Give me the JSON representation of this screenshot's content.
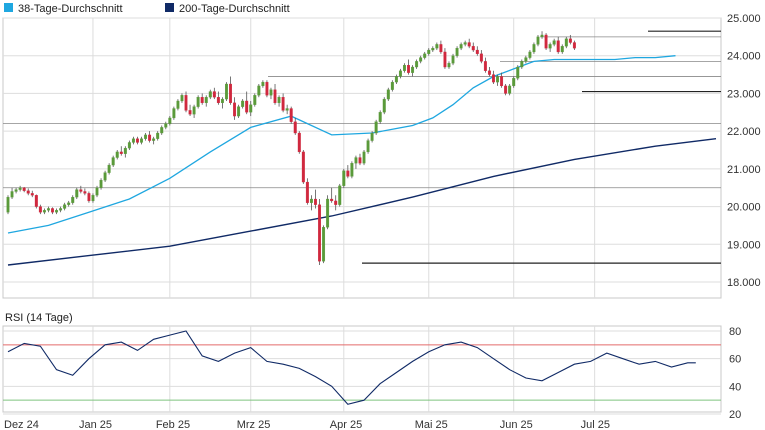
{
  "legend": {
    "items": [
      {
        "label": "38-Tage-Durchschnitt",
        "color": "#1fa7e0"
      },
      {
        "label": "200-Tage-Durchschnitt",
        "color": "#102a66"
      }
    ]
  },
  "colors": {
    "up": "#5a9a3a",
    "down": "#d0283e",
    "ma38": "#1fa7e0",
    "ma200": "#102a66",
    "rsi": "#102a66",
    "rsi_upper": "#e36b6b",
    "rsi_lower": "#7fc47f",
    "level_line": "#333333",
    "grid": "#dddddd"
  },
  "chart_data": [
    {
      "type": "candlestick",
      "title": "",
      "ylim": [
        18000,
        25000
      ],
      "y_ticks": [
        "18.000",
        "19.000",
        "20.000",
        "21.000",
        "22.000",
        "23.000",
        "24.000",
        "25.000"
      ],
      "x_ticks": [
        "Dez 24",
        "Jan 25",
        "Feb 25",
        "Mrz 25",
        "Apr 25",
        "Mai 25",
        "Jun 25",
        "Jul 25"
      ],
      "x_tick_index": [
        0,
        21,
        40,
        60,
        83,
        104,
        125,
        145
      ],
      "grid": true,
      "legend_placement": "top-left",
      "candles": [
        [
          19850,
          20300,
          19800,
          20250
        ],
        [
          20250,
          20500,
          20200,
          20400
        ],
        [
          20400,
          20500,
          20350,
          20450
        ],
        [
          20450,
          20550,
          20400,
          20500
        ],
        [
          20500,
          20520,
          20380,
          20420
        ],
        [
          20420,
          20480,
          20300,
          20350
        ],
        [
          20350,
          20420,
          20250,
          20300
        ],
        [
          20300,
          20320,
          19950,
          20000
        ],
        [
          20000,
          20050,
          19800,
          19850
        ],
        [
          19850,
          19950,
          19800,
          19900
        ],
        [
          19900,
          20000,
          19850,
          19950
        ],
        [
          19950,
          19980,
          19800,
          19850
        ],
        [
          19850,
          19950,
          19800,
          19900
        ],
        [
          19900,
          20000,
          19850,
          19950
        ],
        [
          19950,
          20100,
          19900,
          20050
        ],
        [
          20050,
          20150,
          20000,
          20100
        ],
        [
          20100,
          20300,
          20050,
          20250
        ],
        [
          20250,
          20500,
          20200,
          20450
        ],
        [
          20450,
          20550,
          20350,
          20400
        ],
        [
          20400,
          20480,
          20300,
          20350
        ],
        [
          20350,
          20400,
          20100,
          20150
        ],
        [
          20150,
          20350,
          20100,
          20300
        ],
        [
          20300,
          20550,
          20250,
          20500
        ],
        [
          20500,
          20750,
          20450,
          20700
        ],
        [
          20700,
          20950,
          20650,
          20900
        ],
        [
          20900,
          21150,
          20850,
          21100
        ],
        [
          21100,
          21350,
          21050,
          21300
        ],
        [
          21300,
          21500,
          21250,
          21450
        ],
        [
          21450,
          21600,
          21350,
          21400
        ],
        [
          21400,
          21600,
          21300,
          21550
        ],
        [
          21550,
          21750,
          21500,
          21700
        ],
        [
          21700,
          21850,
          21650,
          21800
        ],
        [
          21800,
          21850,
          21650,
          21700
        ],
        [
          21700,
          21850,
          21650,
          21800
        ],
        [
          21800,
          21950,
          21750,
          21900
        ],
        [
          21900,
          22000,
          21700,
          21750
        ],
        [
          21750,
          21850,
          21650,
          21800
        ],
        [
          21800,
          22000,
          21750,
          21950
        ],
        [
          21950,
          22150,
          21900,
          22100
        ],
        [
          22100,
          22250,
          22050,
          22200
        ],
        [
          22200,
          22400,
          22150,
          22350
        ],
        [
          22350,
          22650,
          22300,
          22600
        ],
        [
          22600,
          22850,
          22550,
          22800
        ],
        [
          22800,
          23000,
          22750,
          22950
        ],
        [
          22950,
          23050,
          22500,
          22550
        ],
        [
          22550,
          22700,
          22400,
          22450
        ],
        [
          22450,
          22700,
          22350,
          22650
        ],
        [
          22650,
          22950,
          22600,
          22900
        ],
        [
          22900,
          23000,
          22700,
          22750
        ],
        [
          22750,
          22950,
          22650,
          22900
        ],
        [
          22900,
          23100,
          22850,
          23050
        ],
        [
          23050,
          23150,
          22850,
          22900
        ],
        [
          22900,
          23050,
          22700,
          22750
        ],
        [
          22750,
          22900,
          22600,
          22850
        ],
        [
          22850,
          23300,
          22800,
          23250
        ],
        [
          23250,
          23450,
          22700,
          22750
        ],
        [
          22750,
          22900,
          22300,
          22400
        ],
        [
          22400,
          22700,
          22350,
          22650
        ],
        [
          22650,
          22850,
          22600,
          22800
        ],
        [
          22800,
          23050,
          22450,
          22500
        ],
        [
          22500,
          22800,
          22400,
          22700
        ],
        [
          22700,
          23000,
          22650,
          22950
        ],
        [
          22950,
          23250,
          22900,
          23200
        ],
        [
          23200,
          23350,
          23150,
          23300
        ],
        [
          23300,
          23350,
          22900,
          22950
        ],
        [
          22950,
          23150,
          22850,
          23100
        ],
        [
          23100,
          23250,
          22700,
          22750
        ],
        [
          22750,
          22950,
          22650,
          22900
        ],
        [
          22900,
          23000,
          22500,
          22550
        ],
        [
          22550,
          22700,
          22450,
          22600
        ],
        [
          22600,
          22650,
          22200,
          22250
        ],
        [
          22250,
          22350,
          21900,
          21950
        ],
        [
          21950,
          22000,
          21400,
          21450
        ],
        [
          21450,
          21500,
          20600,
          20650
        ],
        [
          20650,
          20750,
          20050,
          20100
        ],
        [
          20100,
          20300,
          19900,
          20200
        ],
        [
          20200,
          20450,
          19950,
          20050
        ],
        [
          20050,
          20200,
          18450,
          18550
        ],
        [
          18550,
          19500,
          18500,
          19450
        ],
        [
          19450,
          20300,
          19400,
          20200
        ],
        [
          20200,
          20500,
          20100,
          20150
        ],
        [
          20150,
          20300,
          19900,
          20050
        ],
        [
          20050,
          20600,
          20000,
          20550
        ],
        [
          20550,
          21000,
          20500,
          20950
        ],
        [
          20950,
          21100,
          20750,
          20800
        ],
        [
          20800,
          21200,
          20750,
          21150
        ],
        [
          21150,
          21350,
          21000,
          21300
        ],
        [
          21300,
          21400,
          21100,
          21150
        ],
        [
          21150,
          21500,
          21100,
          21450
        ],
        [
          21450,
          21800,
          21400,
          21750
        ],
        [
          21750,
          22000,
          21700,
          21950
        ],
        [
          21950,
          22300,
          21900,
          22250
        ],
        [
          22250,
          22550,
          22200,
          22500
        ],
        [
          22500,
          22900,
          22450,
          22850
        ],
        [
          22850,
          23150,
          22800,
          23100
        ],
        [
          23100,
          23350,
          23050,
          23300
        ],
        [
          23300,
          23500,
          23250,
          23450
        ],
        [
          23450,
          23650,
          23400,
          23600
        ],
        [
          23600,
          23800,
          23550,
          23750
        ],
        [
          23750,
          23900,
          23500,
          23550
        ],
        [
          23550,
          23750,
          23450,
          23700
        ],
        [
          23700,
          23900,
          23650,
          23850
        ],
        [
          23850,
          24000,
          23800,
          23950
        ],
        [
          23950,
          24100,
          23900,
          24050
        ],
        [
          24050,
          24200,
          24000,
          24150
        ],
        [
          24150,
          24250,
          24100,
          24200
        ],
        [
          24200,
          24350,
          24150,
          24300
        ],
        [
          24300,
          24400,
          24050,
          24100
        ],
        [
          24100,
          24200,
          23650,
          23700
        ],
        [
          23700,
          23850,
          23650,
          23800
        ],
        [
          23800,
          24050,
          23750,
          24000
        ],
        [
          24000,
          24250,
          23950,
          24200
        ],
        [
          24200,
          24350,
          24150,
          24300
        ],
        [
          24300,
          24400,
          24250,
          24350
        ],
        [
          24350,
          24450,
          24200,
          24250
        ],
        [
          24250,
          24350,
          24100,
          24150
        ],
        [
          24150,
          24250,
          24000,
          24050
        ],
        [
          24050,
          24150,
          23800,
          23850
        ],
        [
          23850,
          23950,
          23550,
          23600
        ],
        [
          23600,
          23700,
          23450,
          23500
        ],
        [
          23500,
          23600,
          23250,
          23300
        ],
        [
          23300,
          23500,
          23200,
          23450
        ],
        [
          23450,
          23550,
          23150,
          23200
        ],
        [
          23200,
          23250,
          22950,
          23000
        ],
        [
          23000,
          23250,
          22950,
          23200
        ],
        [
          23200,
          23450,
          23150,
          23400
        ],
        [
          23400,
          23750,
          23350,
          23700
        ],
        [
          23700,
          23900,
          23650,
          23850
        ],
        [
          23850,
          24000,
          23800,
          23950
        ],
        [
          23950,
          24150,
          23900,
          24100
        ],
        [
          24100,
          24350,
          24050,
          24300
        ],
        [
          24300,
          24550,
          24250,
          24500
        ],
        [
          24500,
          24650,
          24450,
          24550
        ],
        [
          24550,
          24600,
          24150,
          24200
        ],
        [
          24200,
          24350,
          24100,
          24300
        ],
        [
          24300,
          24450,
          24250,
          24400
        ],
        [
          24400,
          24500,
          24050,
          24100
        ],
        [
          24100,
          24300,
          24050,
          24250
        ],
        [
          24250,
          24500,
          24200,
          24450
        ],
        [
          24450,
          24550,
          24300,
          24350
        ],
        [
          24350,
          24400,
          24150,
          24200
        ]
      ],
      "series": [
        {
          "name": "38-Tage-Durchschnitt",
          "x": [
            0,
            10,
            20,
            30,
            40,
            50,
            60,
            70,
            80,
            90,
            100,
            105,
            110,
            115,
            120,
            125,
            130,
            135,
            140,
            145,
            150,
            155,
            160,
            165
          ],
          "values": [
            19300,
            19500,
            19850,
            20200,
            20750,
            21450,
            22100,
            22400,
            21900,
            21950,
            22150,
            22350,
            22700,
            23150,
            23450,
            23650,
            23850,
            23900,
            23900,
            23900,
            23900,
            23950,
            23950,
            24000
          ]
        },
        {
          "name": "200-Tage-Durchschnitt",
          "x": [
            0,
            20,
            40,
            60,
            80,
            100,
            120,
            140,
            160,
            175
          ],
          "values": [
            18450,
            18700,
            18950,
            19350,
            19750,
            20250,
            20800,
            21250,
            21600,
            21800
          ]
        }
      ],
      "levels": [
        24650,
        24500,
        23850,
        23450,
        23050,
        22200,
        20500,
        18500
      ]
    },
    {
      "type": "line",
      "title": "RSI (14 Tage)",
      "ylim": [
        20,
        80
      ],
      "y_ticks": [
        "20",
        "40",
        "60",
        "80"
      ],
      "reference_lines": [
        70,
        30
      ],
      "grid": true,
      "x": [
        0,
        4,
        8,
        12,
        16,
        20,
        24,
        28,
        32,
        36,
        40,
        44,
        48,
        52,
        56,
        60,
        64,
        68,
        72,
        76,
        80,
        84,
        88,
        92,
        96,
        100,
        104,
        108,
        112,
        116,
        120,
        124,
        128,
        132,
        136,
        140,
        144,
        148,
        152,
        156,
        160,
        164,
        168,
        170
      ],
      "values": [
        65,
        71,
        69,
        52,
        48,
        60,
        70,
        72,
        66,
        74,
        77,
        80,
        62,
        58,
        64,
        68,
        58,
        56,
        53,
        47,
        40,
        27,
        30,
        42,
        50,
        58,
        65,
        70,
        72,
        68,
        60,
        52,
        46,
        44,
        50,
        56,
        58,
        64,
        60,
        56,
        58,
        54,
        57,
        57
      ]
    }
  ]
}
